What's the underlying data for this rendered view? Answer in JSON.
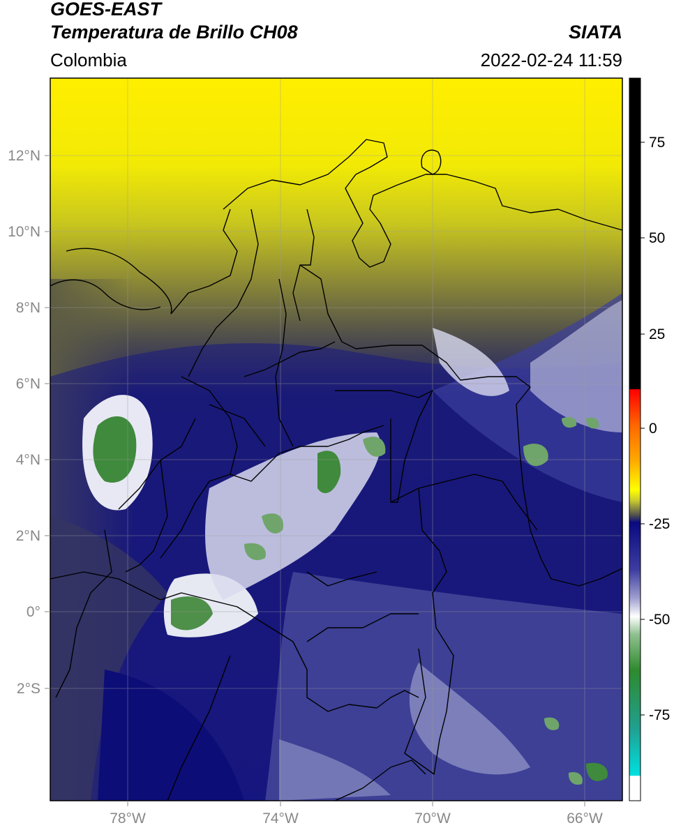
{
  "header": {
    "satellite": "GOES-EAST",
    "product": "Temperatura de Brillo CH08",
    "region": "Colombia",
    "agency": "SIATA",
    "datetime": "2022-02-24 11:59"
  },
  "axes": {
    "lon_ticks": [
      "78°W",
      "74°W",
      "70°W",
      "66°W"
    ],
    "lat_ticks": [
      "12°N",
      "10°N",
      "8°N",
      "6°N",
      "4°N",
      "2°N",
      "0°",
      "2°S"
    ]
  },
  "colorbar": {
    "ticks": [
      "75",
      "50",
      "25",
      "0",
      "-25",
      "-50",
      "-75"
    ]
  },
  "colors": {
    "deep_cold": "#0d0d7a",
    "cold_blue": "#3a3d9b",
    "warm_olive": "#5c5a48",
    "yellow": "#ffff00",
    "green": "#3c8a37",
    "white": "#ffffff",
    "border": "#000000"
  }
}
